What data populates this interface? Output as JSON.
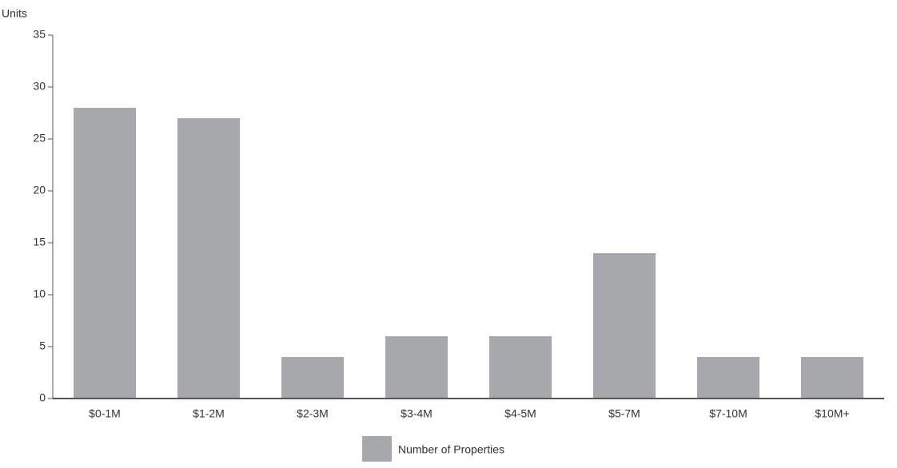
{
  "chart_data": {
    "type": "bar",
    "y_label": "Units",
    "categories": [
      "$0-1M",
      "$1-2M",
      "$2-3M",
      "$3-4M",
      "$4-5M",
      "$5-7M",
      "$7-10M",
      "$10M+"
    ],
    "series": [
      {
        "name": "Number of Properties",
        "color": "#a7a8ab",
        "values": [
          28,
          27,
          4,
          6,
          6,
          14,
          4,
          4
        ]
      }
    ],
    "ylim": [
      0,
      35
    ],
    "yticks": [
      0,
      5,
      10,
      15,
      20,
      25,
      30,
      35
    ],
    "grid": false,
    "legend": "bottom"
  }
}
